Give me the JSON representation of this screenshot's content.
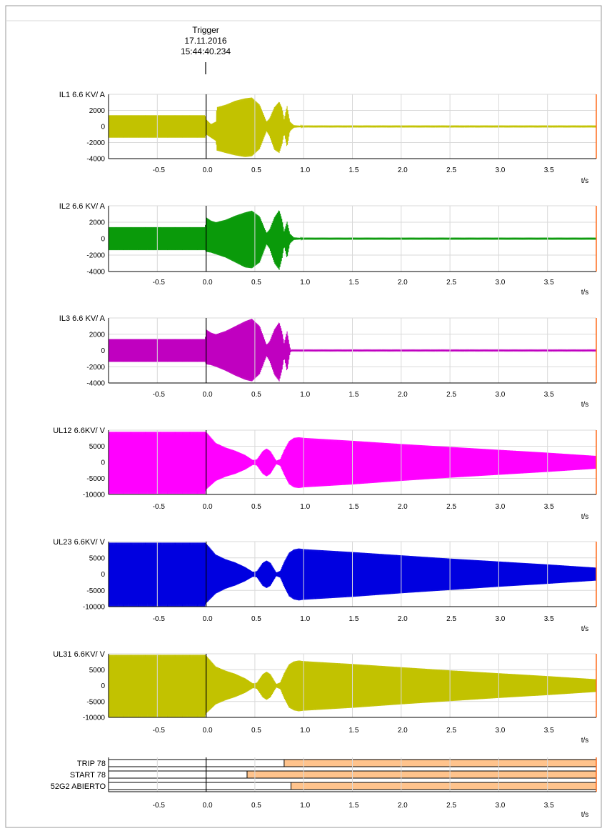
{
  "trigger": {
    "label": "Trigger",
    "date": "17.11.2016",
    "time": "15:44:40.234"
  },
  "colors": {
    "grid": "#d9d9d9",
    "axis": "#000000",
    "cursor": "#ff6a1a",
    "bar_fill": "#ffc38c",
    "bar_stroke": "#000000"
  },
  "chart_data": {
    "type": "line",
    "x_unit_label": "t/s",
    "xlim": [
      -1.0,
      4.0
    ],
    "x_ticks": [
      -0.5,
      0.0,
      0.5,
      1.0,
      1.5,
      2.0,
      2.5,
      3.0,
      3.5
    ],
    "x_tick_labels": [
      "-0.5",
      "0.0",
      "0.5",
      "1.0",
      "1.5",
      "2.0",
      "2.5",
      "3.0",
      "3.5"
    ],
    "trigger_time": 0.0,
    "series": [
      {
        "name": "IL1 6.6 KV/ A",
        "color": "#c2c200",
        "ylim": [
          -4000,
          4000
        ],
        "y_ticks": [
          -4000,
          -2000,
          0,
          2000
        ],
        "y_tick_labels": [
          "-4000",
          "-2000",
          "0",
          "2000"
        ],
        "envelope": {
          "t": [
            -1.0,
            -0.01,
            0.0,
            0.05,
            0.1,
            0.11,
            0.2,
            0.3,
            0.4,
            0.47,
            0.55,
            0.62,
            0.65,
            0.7,
            0.75,
            0.78,
            0.8,
            0.83,
            0.86,
            0.9,
            1.0,
            4.0
          ],
          "pos": [
            1400,
            1400,
            900,
            300,
            600,
            2400,
            2700,
            3200,
            3500,
            3600,
            2700,
            600,
            1000,
            2400,
            3100,
            2300,
            900,
            2600,
            600,
            150,
            60,
            60
          ],
          "neg": [
            1400,
            1400,
            1000,
            1400,
            1800,
            3000,
            3300,
            3600,
            3800,
            3700,
            2800,
            600,
            1200,
            2900,
            3300,
            2200,
            900,
            2600,
            600,
            150,
            60,
            60
          ]
        }
      },
      {
        "name": "IL2 6.6 KV/ A",
        "color": "#0a9a0a",
        "ylim": [
          -4000,
          4000
        ],
        "y_ticks": [
          -4000,
          -2000,
          0,
          2000
        ],
        "y_tick_labels": [
          "-4000",
          "-2000",
          "0",
          "2000"
        ],
        "envelope": {
          "t": [
            -1.0,
            -0.01,
            0.0,
            0.05,
            0.1,
            0.2,
            0.3,
            0.4,
            0.47,
            0.55,
            0.62,
            0.65,
            0.7,
            0.75,
            0.78,
            0.8,
            0.83,
            0.86,
            0.9,
            1.0,
            4.0
          ],
          "pos": [
            1400,
            1400,
            2600,
            2200,
            2000,
            2300,
            2800,
            3200,
            3400,
            2700,
            700,
            1100,
            2600,
            3500,
            2300,
            900,
            2100,
            600,
            150,
            60,
            60
          ],
          "neg": [
            1400,
            1400,
            1600,
            1700,
            1900,
            2300,
            2900,
            3500,
            3600,
            2900,
            700,
            1200,
            3000,
            3800,
            2400,
            900,
            2400,
            600,
            150,
            60,
            60
          ]
        }
      },
      {
        "name": "IL3 6.6 KV/ A",
        "color": "#c000c0",
        "ylim": [
          -4000,
          4000
        ],
        "y_ticks": [
          -4000,
          -2000,
          0,
          2000
        ],
        "y_tick_labels": [
          "-4000",
          "-2000",
          "0",
          "2000"
        ],
        "envelope": {
          "t": [
            -1.0,
            -0.01,
            0.0,
            0.05,
            0.1,
            0.2,
            0.3,
            0.4,
            0.47,
            0.55,
            0.62,
            0.65,
            0.7,
            0.75,
            0.78,
            0.8,
            0.83,
            0.86,
            0.87,
            1.0,
            4.0
          ],
          "pos": [
            1400,
            1400,
            2600,
            2200,
            2000,
            2400,
            3000,
            3600,
            3900,
            3000,
            700,
            1100,
            2600,
            3500,
            2300,
            900,
            2400,
            400,
            60,
            60,
            60
          ],
          "neg": [
            1400,
            1400,
            1700,
            1800,
            2000,
            2500,
            3100,
            3600,
            3800,
            2900,
            700,
            1300,
            3000,
            3800,
            2400,
            900,
            2600,
            400,
            60,
            60,
            60
          ]
        }
      },
      {
        "name": "UL12 6.6KV/ V",
        "color": "#ff00ff",
        "ylim": [
          -10000,
          10000
        ],
        "y_ticks": [
          -10000,
          -5000,
          0,
          5000
        ],
        "y_tick_labels": [
          "-10000",
          "-5000",
          "0",
          "5000"
        ],
        "envelope": {
          "t": [
            -1.0,
            -0.01,
            0.0,
            0.1,
            0.2,
            0.3,
            0.4,
            0.48,
            0.52,
            0.58,
            0.62,
            0.66,
            0.72,
            0.76,
            0.8,
            0.85,
            0.9,
            0.95,
            1.0,
            1.5,
            2.0,
            2.5,
            3.0,
            3.5,
            4.0
          ],
          "pos": [
            9500,
            9500,
            9500,
            6000,
            4600,
            3600,
            2300,
            700,
            900,
            3500,
            4300,
            3500,
            500,
            1000,
            3800,
            6600,
            7600,
            7800,
            7600,
            6700,
            5700,
            4800,
            3900,
            3000,
            2000
          ],
          "neg": [
            9800,
            9800,
            8500,
            5800,
            4500,
            3600,
            2300,
            800,
            1000,
            3600,
            4400,
            3600,
            600,
            1100,
            3900,
            6800,
            7800,
            8000,
            7800,
            6900,
            5800,
            4800,
            3900,
            3000,
            2000
          ]
        }
      },
      {
        "name": "UL23 6.6KV/ V",
        "color": "#0000e0",
        "ylim": [
          -10000,
          10000
        ],
        "y_ticks": [
          -10000,
          -5000,
          0,
          5000
        ],
        "y_tick_labels": [
          "-10000",
          "-5000",
          "0",
          "5000"
        ],
        "envelope": {
          "t": [
            -1.0,
            -0.01,
            0.0,
            0.1,
            0.2,
            0.3,
            0.4,
            0.48,
            0.52,
            0.58,
            0.62,
            0.66,
            0.72,
            0.76,
            0.8,
            0.85,
            0.9,
            0.95,
            1.0,
            1.5,
            2.0,
            2.5,
            3.0,
            3.5,
            4.0
          ],
          "pos": [
            9700,
            9700,
            9500,
            6000,
            4600,
            3600,
            2200,
            700,
            900,
            3500,
            4200,
            3500,
            500,
            1000,
            3800,
            6600,
            7600,
            7900,
            7700,
            6800,
            5800,
            4800,
            3900,
            3000,
            2000
          ],
          "neg": [
            9900,
            9900,
            9000,
            6000,
            4500,
            3500,
            2200,
            800,
            1000,
            3600,
            4300,
            3600,
            600,
            1100,
            3900,
            6800,
            7800,
            8100,
            7900,
            7000,
            5900,
            4900,
            3900,
            3000,
            2000
          ]
        }
      },
      {
        "name": "UL31 6.6KV/ V",
        "color": "#c2c200",
        "ylim": [
          -10000,
          10000
        ],
        "y_ticks": [
          -10000,
          -5000,
          0,
          5000
        ],
        "y_tick_labels": [
          "-10000",
          "-5000",
          "0",
          "5000"
        ],
        "envelope": {
          "t": [
            -1.0,
            -0.01,
            0.0,
            0.1,
            0.2,
            0.3,
            0.4,
            0.48,
            0.52,
            0.58,
            0.62,
            0.66,
            0.72,
            0.76,
            0.8,
            0.85,
            0.9,
            0.95,
            1.0,
            1.5,
            2.0,
            2.5,
            3.0,
            3.5,
            4.0
          ],
          "pos": [
            9700,
            9700,
            9500,
            6000,
            4700,
            3700,
            2300,
            700,
            900,
            3600,
            4400,
            3600,
            500,
            1000,
            3900,
            6700,
            7600,
            7900,
            7700,
            6800,
            5800,
            4800,
            3900,
            3000,
            2000
          ],
          "neg": [
            9900,
            9900,
            8800,
            5900,
            4600,
            3600,
            2300,
            800,
            1000,
            3700,
            4500,
            3700,
            600,
            1100,
            4000,
            6900,
            7800,
            8100,
            7900,
            7000,
            5900,
            4900,
            3900,
            3000,
            2000
          ]
        }
      }
    ],
    "digital": [
      {
        "name": "TRIP 78",
        "on_from": 0.8
      },
      {
        "name": "START 78",
        "on_from": 0.42
      },
      {
        "name": "52G2 ABIERTO",
        "on_from": 0.87
      }
    ]
  }
}
